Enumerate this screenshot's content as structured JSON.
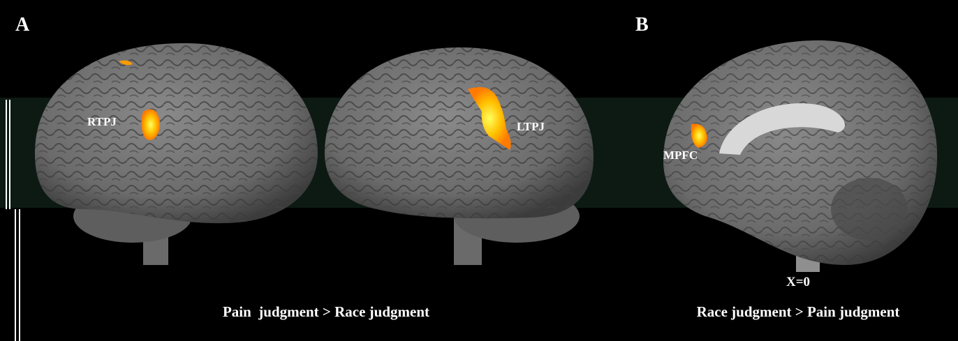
{
  "panels": [
    {
      "letter": "A",
      "labels": [
        "RTPJ",
        "LTPJ"
      ],
      "caption": "Pain  judgment > Race judgment"
    },
    {
      "letter": "B",
      "labels": [
        "MPFC"
      ],
      "coordinate": "X=0",
      "caption": "Race judgment > Pain judgment"
    }
  ]
}
